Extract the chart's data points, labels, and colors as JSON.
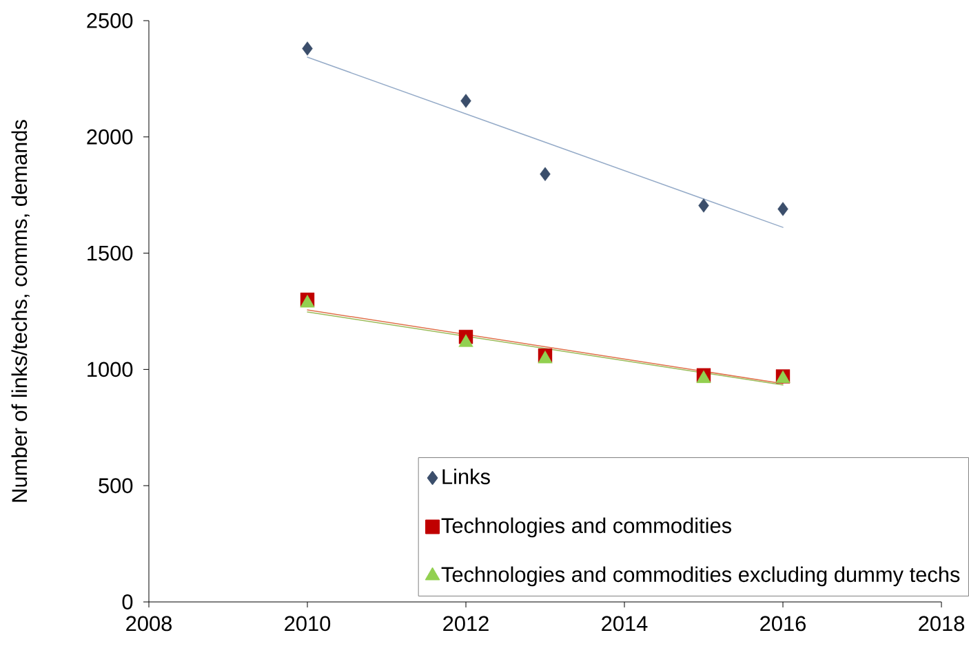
{
  "chart_data": {
    "type": "scatter",
    "ylabel": "Number of links/techs, comms, demands",
    "xlim": [
      2008,
      2018
    ],
    "xticks": [
      2008,
      2010,
      2012,
      2014,
      2016,
      2018
    ],
    "ylim": [
      0,
      2500
    ],
    "yticks": [
      0,
      500,
      1000,
      1500,
      2000,
      2500
    ],
    "legend": "bottom right",
    "series": [
      {
        "name": "Links",
        "type": "scatter",
        "marker": "diamond",
        "color": "#3b4e6b",
        "x": [
          2010,
          2012,
          2013,
          2015,
          2016
        ],
        "values": [
          2380,
          2155,
          1840,
          1705,
          1690
        ]
      },
      {
        "name": "Technologies and commodities",
        "type": "scatter",
        "marker": "square",
        "color": "#c00000",
        "x": [
          2010,
          2012,
          2013,
          2015,
          2016
        ],
        "values": [
          1300,
          1140,
          1060,
          975,
          970
        ]
      },
      {
        "name": "Technologies and commodities excluding dummy techs",
        "type": "scatter",
        "marker": "triangle",
        "color": "#92d050",
        "x": [
          2010,
          2012,
          2013,
          2015,
          2016
        ],
        "values": [
          1285,
          1115,
          1045,
          960,
          960
        ]
      },
      {
        "type": "line",
        "marker": "none",
        "color": "#95abc8",
        "x": [
          2010,
          2016
        ],
        "values": [
          2343,
          1611
        ]
      },
      {
        "type": "line",
        "marker": "none",
        "color": "#e0704a",
        "x": [
          2010,
          2016
        ],
        "values": [
          1256,
          939
        ]
      },
      {
        "type": "line",
        "marker": "none",
        "color": "#9bbb59",
        "x": [
          2010,
          2016
        ],
        "values": [
          1247,
          933
        ]
      }
    ]
  }
}
